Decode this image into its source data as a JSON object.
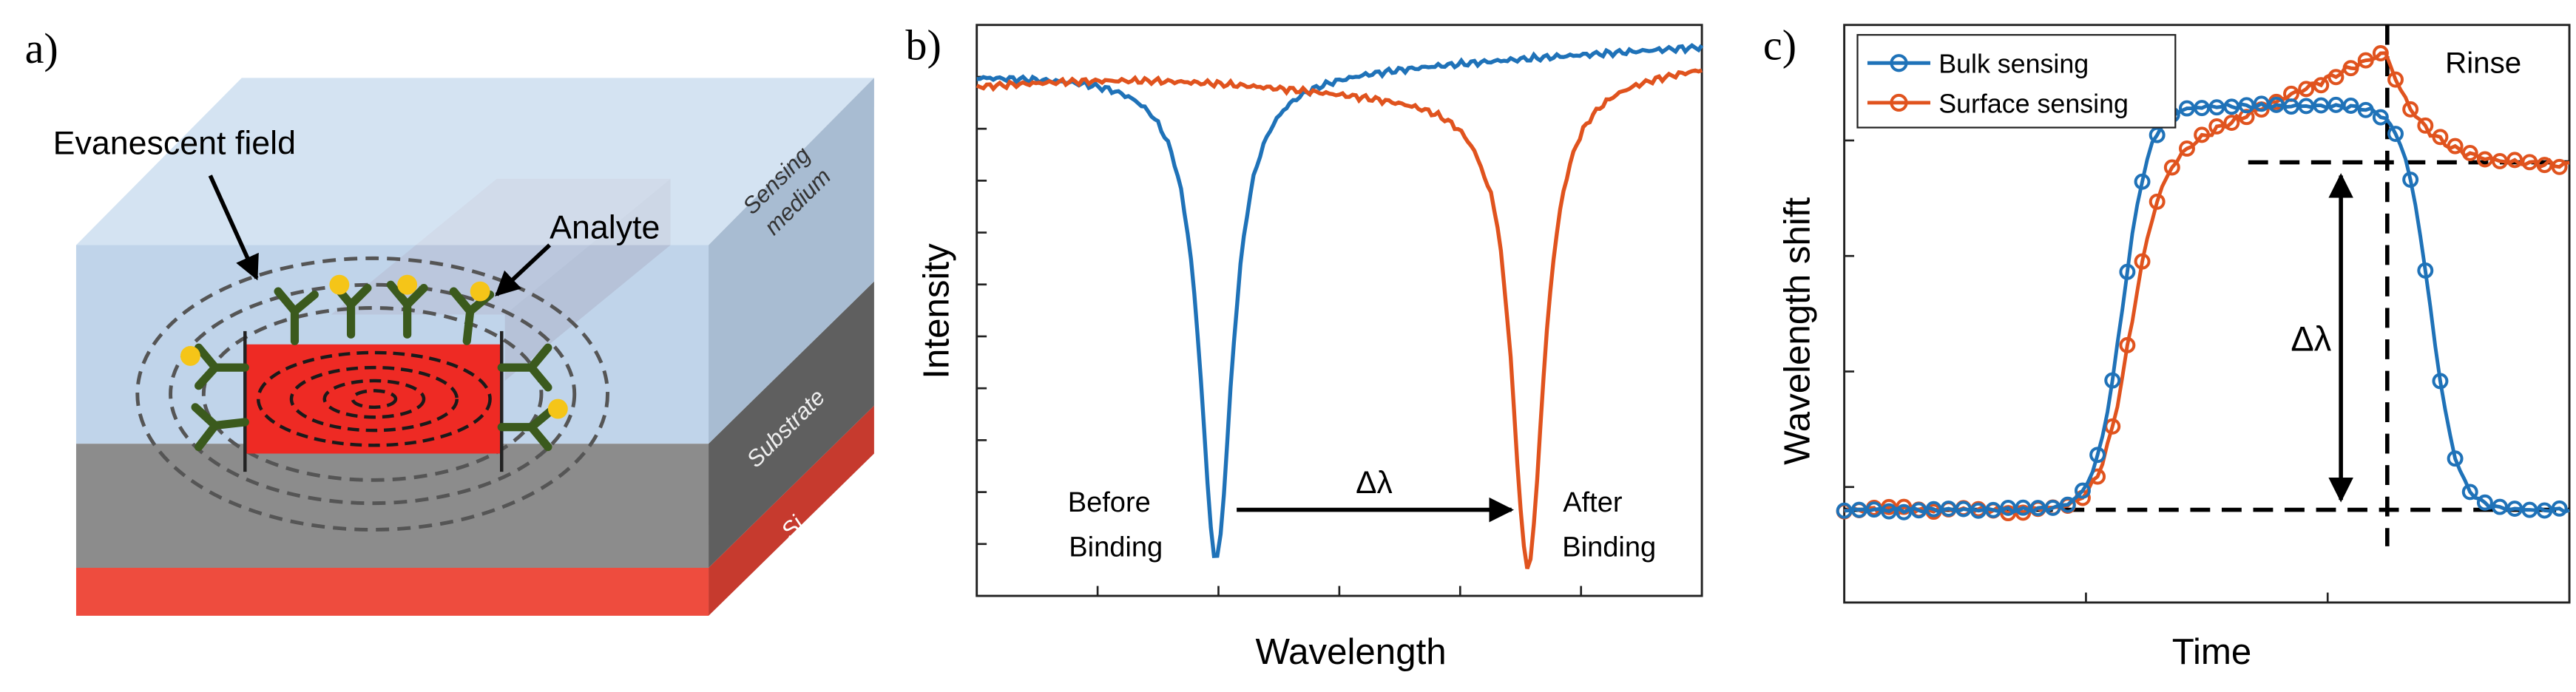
{
  "panel_a": {
    "panel_label": "a)",
    "evanescent_label": "Evanescent field",
    "analyte_label": "Analyte",
    "sensing_label_line1": "Sensing",
    "sensing_label_line2": "medium",
    "substrate_label": "Substrate",
    "si_label": "Si",
    "colors": {
      "sensing": "#c6d9ee",
      "substrate": "#8a8a8a",
      "si": "#e84c3d",
      "core": "#ee2a24",
      "antibody": "#3a5a1c",
      "analyte": "#f5c518"
    }
  },
  "panel_b": {
    "panel_label": "b)",
    "ylabel": "Intensity",
    "xlabel": "Wavelength",
    "before_line1": "Before",
    "before_line2": "Binding",
    "after_line1": "After",
    "after_line2": "Binding",
    "shift_label": "Δλ",
    "colors": {
      "before": "#1f72b8",
      "after": "#e0531e"
    }
  },
  "panel_c": {
    "panel_label": "c)",
    "ylabel": "Wavelength shift",
    "xlabel": "Time",
    "rinse_label": "Rinse",
    "shift_label": "Δλ",
    "colors": {
      "bulk": "#1f72b8",
      "surface": "#e0531e"
    }
  },
  "chart_data": [
    {
      "type": "line",
      "panel": "b",
      "xlabel": "Wavelength",
      "ylabel": "Intensity",
      "series": [
        {
          "name": "",
          "dip_center_fraction": 0.33,
          "dip_depth_fraction": 0.95
        },
        {
          "name": "",
          "dip_center_fraction": 0.76,
          "dip_depth_fraction": 0.95
        }
      ]
    },
    {
      "type": "line",
      "panel": "c",
      "xlabel": "Time",
      "ylabel": "Wavelength shift",
      "legend": "top-left",
      "legend_entries": [
        "Bulk sensing",
        "Surface sensing"
      ],
      "series": [
        {
          "name": "Bulk sensing"
        },
        {
          "name": "Surface sensing"
        }
      ]
    }
  ]
}
